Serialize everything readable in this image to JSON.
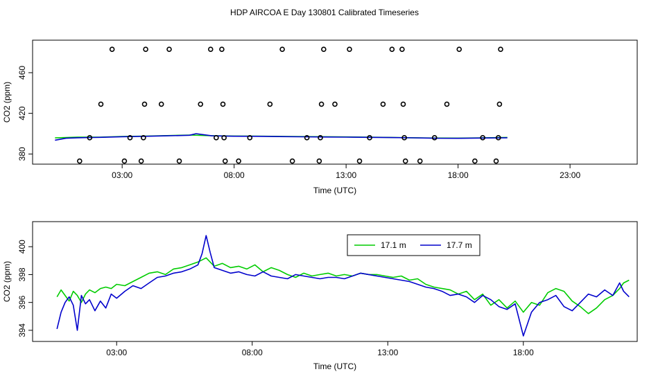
{
  "title": "HDP AIRCOA E  Day 130801  Calibrated Timeseries",
  "colors": {
    "green": "#00cc00",
    "blue": "#0000cc",
    "points": "#000000"
  },
  "chart_data": [
    {
      "type": "scatter",
      "xlabel": "Time (UTC)",
      "ylabel": "CO2 (ppm)",
      "xlim": [
        -1.0,
        26.0
      ],
      "ylim": [
        370,
        492
      ],
      "xticks": [
        3,
        8,
        13,
        18,
        23
      ],
      "xtick_labels": [
        "03:00",
        "08:00",
        "13:00",
        "18:00",
        "23:00"
      ],
      "yticks": [
        380,
        420,
        460
      ],
      "ytick_labels": [
        "380",
        "420",
        "460"
      ],
      "grid": false,
      "points": [
        [
          1.1,
          373
        ],
        [
          1.55,
          396
        ],
        [
          2.05,
          429
        ],
        [
          2.55,
          483
        ],
        [
          3.1,
          373
        ],
        [
          3.35,
          396
        ],
        [
          3.85,
          373
        ],
        [
          3.95,
          396
        ],
        [
          4.0,
          429
        ],
        [
          4.05,
          483
        ],
        [
          4.75,
          429
        ],
        [
          5.1,
          483
        ],
        [
          5.55,
          373
        ],
        [
          6.5,
          429
        ],
        [
          6.95,
          483
        ],
        [
          7.2,
          396
        ],
        [
          7.45,
          483
        ],
        [
          7.5,
          429
        ],
        [
          7.55,
          396
        ],
        [
          7.6,
          373
        ],
        [
          8.2,
          373
        ],
        [
          8.7,
          396
        ],
        [
          9.6,
          429
        ],
        [
          10.15,
          483
        ],
        [
          10.6,
          373
        ],
        [
          11.25,
          396
        ],
        [
          11.8,
          373
        ],
        [
          11.85,
          396
        ],
        [
          11.9,
          429
        ],
        [
          12.0,
          483
        ],
        [
          12.5,
          429
        ],
        [
          13.15,
          483
        ],
        [
          13.6,
          373
        ],
        [
          14.05,
          396
        ],
        [
          14.65,
          429
        ],
        [
          15.05,
          483
        ],
        [
          15.5,
          483
        ],
        [
          15.55,
          429
        ],
        [
          15.6,
          396
        ],
        [
          15.65,
          373
        ],
        [
          16.3,
          373
        ],
        [
          16.95,
          396
        ],
        [
          17.5,
          429
        ],
        [
          18.05,
          483
        ],
        [
          18.75,
          373
        ],
        [
          19.1,
          396
        ],
        [
          19.7,
          373
        ],
        [
          19.8,
          396
        ],
        [
          19.85,
          429
        ],
        [
          19.9,
          483
        ]
      ],
      "series": [
        {
          "name": "",
          "color": "#00cc00",
          "x": [
            0,
            1,
            2,
            3,
            4,
            5,
            6,
            7,
            8,
            9,
            10,
            11,
            12,
            13,
            14,
            15,
            16,
            17,
            18,
            19,
            20.2
          ],
          "y": [
            395.8,
            396.5,
            396.5,
            397.2,
            397.6,
            398.1,
            398.6,
            398.0,
            397.7,
            397.6,
            397.3,
            397.1,
            397.0,
            396.8,
            396.6,
            396.3,
            396.0,
            395.7,
            395.6,
            395.9,
            396.3
          ]
        },
        {
          "name": "",
          "color": "#0000cc",
          "x": [
            0,
            0.5,
            1,
            2,
            3,
            4,
            5,
            6,
            6.3,
            7,
            8,
            9,
            10,
            11,
            12,
            13,
            14,
            15,
            16,
            17,
            18,
            19,
            20.2
          ],
          "y": [
            393.6,
            395.5,
            396.0,
            396.4,
            397.0,
            397.4,
            397.9,
            398.4,
            400.0,
            397.9,
            397.5,
            397.4,
            397.1,
            396.9,
            396.7,
            396.6,
            396.4,
            396.2,
            395.9,
            395.5,
            395.4,
            395.7,
            396.0
          ]
        }
      ]
    },
    {
      "type": "line",
      "xlabel": "Time (UTC)",
      "ylabel": "CO2 (ppm)",
      "xlim": [
        -0.1,
        22.2
      ],
      "ylim": [
        393.2,
        401.8
      ],
      "xticks": [
        3,
        8,
        13,
        18
      ],
      "xtick_labels": [
        "03:00",
        "08:00",
        "13:00",
        "18:00"
      ],
      "yticks": [
        394,
        396,
        398,
        400
      ],
      "ytick_labels": [
        "394",
        "396",
        "398",
        "400"
      ],
      "grid": false,
      "legend_position": "top-right",
      "legend": [
        "17.1 m",
        "17.7 m"
      ],
      "series": [
        {
          "name": "17.1 m",
          "color": "#00cc00",
          "x": [
            0.8,
            0.95,
            1.1,
            1.25,
            1.4,
            1.55,
            1.7,
            1.85,
            2.0,
            2.2,
            2.4,
            2.6,
            2.8,
            3.0,
            3.3,
            3.6,
            3.9,
            4.2,
            4.5,
            4.8,
            5.1,
            5.4,
            5.7,
            6.0,
            6.3,
            6.6,
            6.9,
            7.2,
            7.5,
            7.8,
            8.1,
            8.4,
            8.7,
            9.0,
            9.3,
            9.6,
            9.9,
            10.2,
            10.5,
            10.8,
            11.1,
            11.4,
            11.7,
            12.0,
            12.3,
            12.6,
            12.9,
            13.2,
            13.5,
            13.8,
            14.1,
            14.4,
            14.7,
            15.0,
            15.3,
            15.6,
            15.9,
            16.2,
            16.5,
            16.8,
            17.1,
            17.4,
            17.7,
            18.0,
            18.3,
            18.6,
            18.9,
            19.2,
            19.5,
            19.8,
            20.1,
            20.4,
            20.7,
            21.0,
            21.3,
            21.55,
            21.7,
            21.9
          ],
          "y": [
            396.4,
            396.9,
            396.5,
            396.1,
            396.8,
            396.5,
            396.0,
            396.6,
            396.9,
            396.7,
            397.0,
            397.1,
            397.0,
            397.3,
            397.2,
            397.5,
            397.8,
            398.1,
            398.2,
            398.0,
            398.4,
            398.5,
            398.7,
            398.9,
            399.2,
            398.6,
            398.8,
            398.5,
            398.6,
            398.4,
            398.7,
            398.2,
            398.5,
            398.3,
            398.0,
            397.8,
            398.1,
            397.9,
            398.0,
            398.1,
            397.9,
            398.0,
            397.9,
            398.1,
            398.0,
            398.0,
            397.9,
            397.8,
            397.9,
            397.6,
            397.7,
            397.3,
            397.1,
            397.0,
            396.9,
            396.6,
            396.8,
            396.2,
            396.6,
            395.8,
            396.2,
            395.6,
            396.1,
            395.3,
            396.0,
            395.8,
            396.7,
            397.0,
            396.8,
            396.1,
            395.7,
            395.2,
            395.6,
            396.2,
            396.5,
            397.0,
            397.4,
            397.6
          ]
        },
        {
          "name": "17.7 m",
          "color": "#0000cc",
          "x": [
            0.8,
            0.95,
            1.1,
            1.25,
            1.4,
            1.55,
            1.7,
            1.85,
            2.0,
            2.2,
            2.4,
            2.6,
            2.8,
            3.0,
            3.3,
            3.6,
            3.9,
            4.2,
            4.5,
            4.8,
            5.1,
            5.4,
            5.7,
            6.0,
            6.15,
            6.3,
            6.45,
            6.6,
            6.9,
            7.2,
            7.5,
            7.8,
            8.1,
            8.4,
            8.7,
            9.0,
            9.3,
            9.6,
            9.9,
            10.2,
            10.5,
            10.8,
            11.1,
            11.4,
            11.7,
            12.0,
            12.3,
            12.6,
            12.9,
            13.2,
            13.5,
            13.8,
            14.1,
            14.4,
            14.7,
            15.0,
            15.3,
            15.6,
            15.9,
            16.2,
            16.5,
            16.8,
            17.1,
            17.4,
            17.7,
            18.0,
            18.3,
            18.6,
            18.9,
            19.2,
            19.5,
            19.8,
            20.1,
            20.4,
            20.7,
            21.0,
            21.3,
            21.55,
            21.7,
            21.9
          ],
          "y": [
            394.1,
            395.3,
            396.0,
            396.4,
            395.8,
            394.0,
            396.5,
            395.9,
            396.2,
            395.4,
            396.1,
            395.6,
            396.6,
            396.3,
            396.8,
            397.2,
            397.0,
            397.4,
            397.8,
            397.9,
            398.1,
            398.2,
            398.4,
            398.7,
            399.5,
            400.8,
            399.6,
            398.5,
            398.3,
            398.1,
            398.2,
            398.0,
            397.9,
            398.2,
            397.9,
            397.8,
            397.7,
            398.0,
            397.9,
            397.8,
            397.7,
            397.8,
            397.8,
            397.7,
            397.9,
            398.1,
            398.0,
            397.9,
            397.8,
            397.7,
            397.6,
            397.5,
            397.3,
            397.1,
            397.0,
            396.8,
            396.5,
            396.6,
            396.4,
            396.0,
            396.5,
            396.2,
            395.7,
            395.5,
            395.9,
            393.6,
            395.3,
            396.0,
            396.2,
            396.5,
            395.7,
            395.4,
            396.0,
            396.6,
            396.4,
            396.9,
            396.5,
            397.4,
            396.8,
            396.4
          ]
        }
      ]
    }
  ]
}
